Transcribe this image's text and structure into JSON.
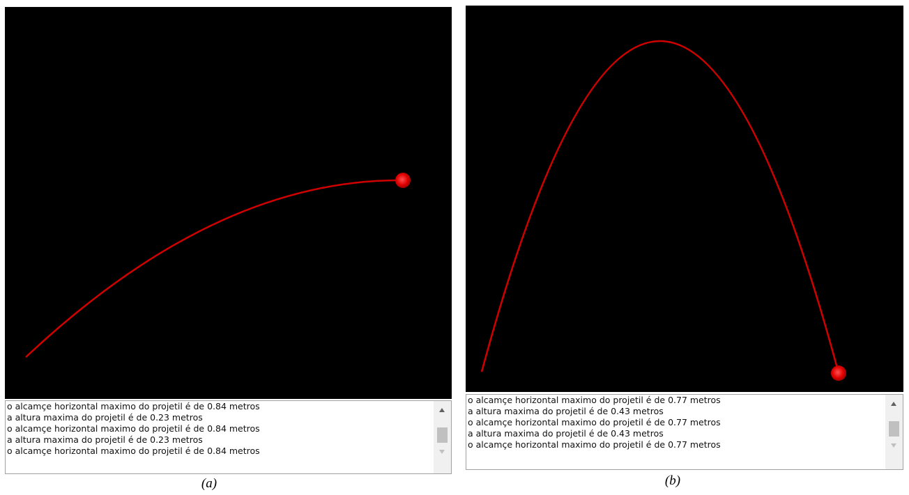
{
  "panels": [
    {
      "caption": "(a)",
      "log": [
        "o alcamçe horizontal maximo do projetil é de 0.84 metros",
        "a altura maxima do projetil é de 0.23 metros",
        "o alcamçe horizontal maximo do projetil é de 0.84 metros",
        "a altura maxima do projetil é de 0.23 metros",
        "o alcamçe horizontal maximo do projetil é de 0.84 metros"
      ]
    },
    {
      "caption": "(b)",
      "log": [
        "o alcamçe horizontal maximo do projetil é de 0.77 metros",
        "a altura maxima do projetil é de 0.43 metros",
        "o alcamçe horizontal maximo do projetil é de 0.77 metros",
        "a altura maxima do projetil é de 0.43 metros",
        "o alcamçe horizontal maximo do projetil é de 0.77 metros"
      ]
    }
  ]
}
